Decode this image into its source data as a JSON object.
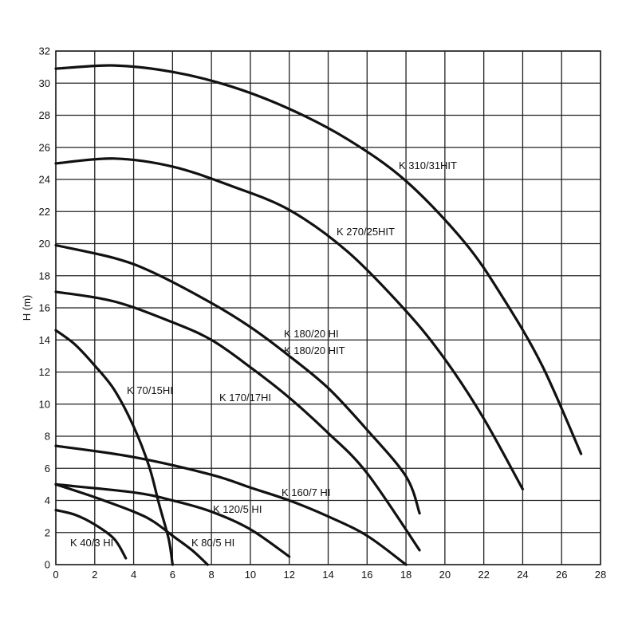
{
  "chart_data": {
    "type": "line",
    "title": "",
    "xlabel": "",
    "ylabel": "H (m)",
    "xlim": [
      0,
      28
    ],
    "ylim": [
      0,
      32
    ],
    "x_ticks": [
      0,
      2,
      4,
      6,
      8,
      10,
      12,
      14,
      16,
      18,
      20,
      22,
      24,
      26,
      28
    ],
    "y_ticks": [
      0,
      2,
      4,
      6,
      8,
      10,
      12,
      14,
      16,
      18,
      20,
      22,
      24,
      26,
      28,
      30,
      32
    ],
    "grid": true,
    "legend": "none",
    "colors": {
      "curve": "#111111",
      "grid": "#222222"
    },
    "series": [
      {
        "name": "K 310/31HIT",
        "points": [
          [
            0,
            30.9
          ],
          [
            3,
            31.1
          ],
          [
            6,
            30.7
          ],
          [
            9,
            29.8
          ],
          [
            12,
            28.4
          ],
          [
            15,
            26.5
          ],
          [
            18,
            23.9
          ],
          [
            21,
            20.1
          ],
          [
            23,
            16.6
          ],
          [
            25,
            12.4
          ],
          [
            27,
            6.9
          ]
        ]
      },
      {
        "name": "K 270/25HIT",
        "points": [
          [
            0,
            25.0
          ],
          [
            3,
            25.3
          ],
          [
            6,
            24.8
          ],
          [
            9,
            23.6
          ],
          [
            12,
            22.1
          ],
          [
            15,
            19.5
          ],
          [
            18,
            15.8
          ],
          [
            20,
            12.8
          ],
          [
            22,
            9.1
          ],
          [
            24,
            4.7
          ]
        ]
      },
      {
        "name": "K 180/20 HI",
        "points": [
          [
            0,
            19.9
          ],
          [
            3,
            19.1
          ],
          [
            5,
            18.2
          ],
          [
            8,
            16.3
          ],
          [
            10,
            14.8
          ],
          [
            12,
            13.0
          ],
          [
            14,
            11.0
          ],
          [
            16,
            8.4
          ],
          [
            18,
            5.5
          ],
          [
            18.7,
            3.2
          ]
        ]
      },
      {
        "name": "K 180/20 HIT",
        "points": []
      },
      {
        "name": "K 170/17HI",
        "points": [
          [
            0,
            17.0
          ],
          [
            3,
            16.4
          ],
          [
            6,
            15.1
          ],
          [
            8,
            14.0
          ],
          [
            10,
            12.3
          ],
          [
            12,
            10.4
          ],
          [
            14,
            8.2
          ],
          [
            16,
            5.7
          ],
          [
            18.7,
            0.9
          ]
        ]
      },
      {
        "name": "K 160/7 HI",
        "points": [
          [
            0,
            7.4
          ],
          [
            4,
            6.7
          ],
          [
            8,
            5.6
          ],
          [
            10,
            4.8
          ],
          [
            12,
            4.0
          ],
          [
            14,
            3.0
          ],
          [
            16,
            1.8
          ],
          [
            18,
            0.0
          ]
        ]
      },
      {
        "name": "K 120/5 HI",
        "points": [
          [
            0,
            5.0
          ],
          [
            4,
            4.5
          ],
          [
            6,
            4.0
          ],
          [
            8,
            3.3
          ],
          [
            10,
            2.2
          ],
          [
            12,
            0.5
          ]
        ]
      },
      {
        "name": "K 80/5 HI",
        "points": [
          [
            0,
            5.0
          ],
          [
            2,
            4.2
          ],
          [
            4,
            3.3
          ],
          [
            5,
            2.7
          ],
          [
            6,
            1.8
          ],
          [
            7,
            0.9
          ],
          [
            7.8,
            0.0
          ]
        ]
      },
      {
        "name": "K 70/15HI",
        "points": [
          [
            0,
            14.6
          ],
          [
            1,
            13.7
          ],
          [
            2,
            12.4
          ],
          [
            3,
            10.9
          ],
          [
            4,
            8.6
          ],
          [
            4.8,
            6.1
          ],
          [
            5.3,
            3.8
          ],
          [
            5.8,
            1.6
          ],
          [
            6.0,
            0.0
          ]
        ]
      },
      {
        "name": "K 40/3 HI",
        "points": [
          [
            0,
            3.4
          ],
          [
            1,
            3.1
          ],
          [
            2,
            2.5
          ],
          [
            3,
            1.6
          ],
          [
            3.6,
            0.4
          ]
        ]
      }
    ]
  }
}
